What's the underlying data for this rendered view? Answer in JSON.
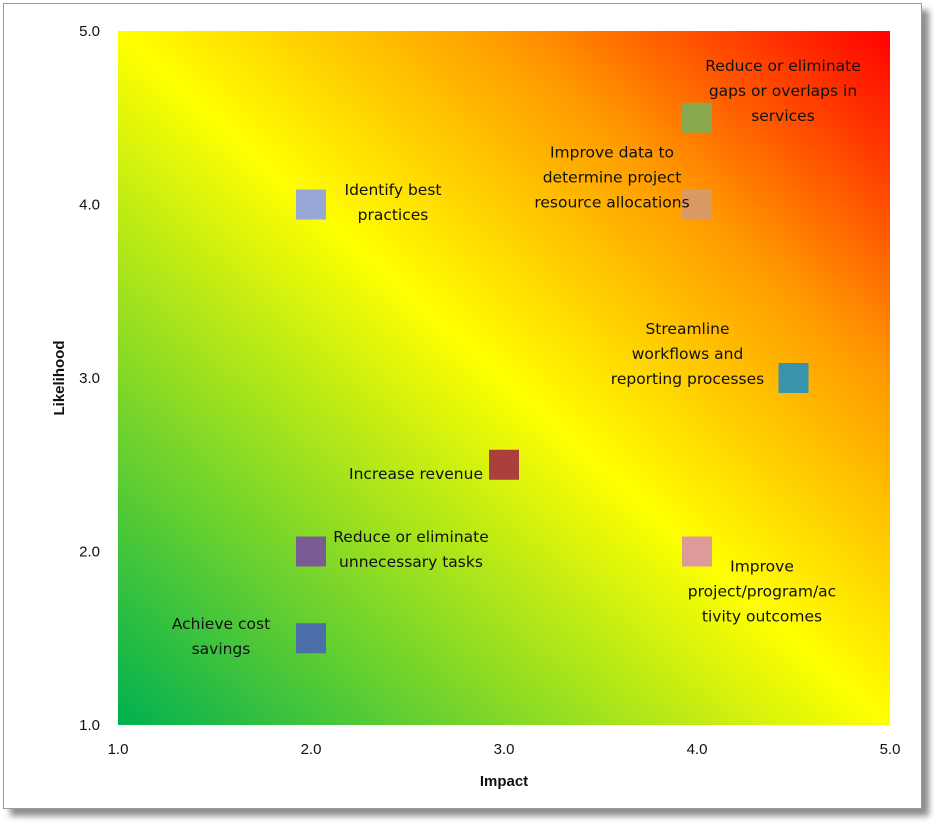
{
  "chart_data": {
    "type": "scatter",
    "title": "",
    "xlabel": "Impact",
    "ylabel": "Likelihood",
    "xlim": [
      1.0,
      5.0
    ],
    "ylim": [
      1.0,
      5.0
    ],
    "x_ticks": [
      "1.0",
      "2.0",
      "3.0",
      "4.0",
      "5.0"
    ],
    "y_ticks": [
      "1.0",
      "2.0",
      "3.0",
      "4.0",
      "5.0"
    ],
    "grid": false,
    "background": "diagonal heat gradient: green (low) to yellow to red (high)",
    "gradient_colors": [
      "#00b050",
      "#ffff00",
      "#ff9900",
      "#ff0000"
    ],
    "points": [
      {
        "x": 4.0,
        "y": 4.5,
        "label": [
          "Reduce or eliminate",
          "gaps or overlaps in",
          "services"
        ],
        "color": "#8aa84e"
      },
      {
        "x": 4.0,
        "y": 4.0,
        "label": [
          "Improve data to",
          "determine project",
          "resource allocations"
        ],
        "color": "#d99a63"
      },
      {
        "x": 2.0,
        "y": 4.0,
        "label": [
          "Identify best",
          "practices"
        ],
        "color": "#97a8d6"
      },
      {
        "x": 4.5,
        "y": 3.0,
        "label": [
          "Streamline",
          "workflows and",
          "reporting processes"
        ],
        "color": "#3a93ad"
      },
      {
        "x": 3.0,
        "y": 2.5,
        "label": [
          "Increase revenue"
        ],
        "color": "#aa3f3c"
      },
      {
        "x": 2.0,
        "y": 2.0,
        "label": [
          "Reduce or eliminate",
          "unnecessary tasks"
        ],
        "color": "#7a5b93"
      },
      {
        "x": 4.0,
        "y": 2.0,
        "label": [
          "Improve",
          "project/program/ac",
          "tivity outcomes"
        ],
        "color": "#dc9a99"
      },
      {
        "x": 2.0,
        "y": 1.5,
        "label": [
          "Achieve cost",
          "savings"
        ],
        "color": "#4b6fa8"
      }
    ]
  }
}
